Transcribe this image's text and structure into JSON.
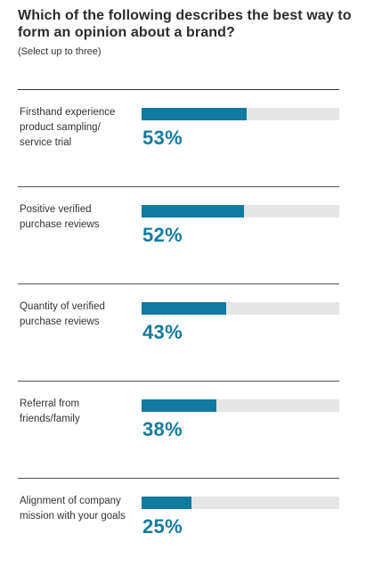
{
  "title": "Which of the following describes the best way to form an opinion about a brand?",
  "subtitle": "(Select up to three)",
  "colors": {
    "accent": "#117a9f",
    "track": "#e6e6e6",
    "value_text": "#147b9e"
  },
  "chart_data": {
    "type": "bar",
    "orientation": "horizontal",
    "title": "Which of the following describes the best way to form an opinion about a brand?",
    "subtitle": "(Select up to three)",
    "ylim": [
      0,
      100
    ],
    "categories": [
      "Firsthand experience product sampling/ service trial",
      "Positive verified purchase reviews",
      "Quantity of verified purchase reviews",
      "Referral from friends/family",
      "Alignment of company mission with your goals"
    ],
    "values": [
      53,
      52,
      43,
      38,
      25
    ],
    "value_labels": [
      "53%",
      "52%",
      "43%",
      "38%",
      "25%"
    ],
    "grid": false,
    "legend": "none"
  }
}
